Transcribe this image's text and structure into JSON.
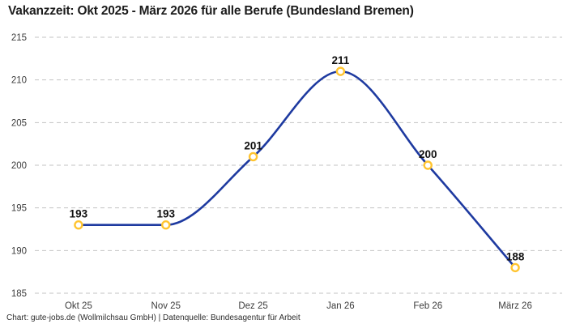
{
  "header": {
    "title": "Vakanzzeit: Okt 2025 - März 2026 für alle Berufe (Bundesland Bremen)"
  },
  "footer": {
    "attribution": "Chart: gute-jobs.de (Wollmilchsau GmbH) | Datenquelle: Bundesagentur für Arbeit"
  },
  "chart_data": {
    "type": "line",
    "title": "Vakanzzeit: Okt 2025 - März 2026 für alle Berufe (Bundesland Bremen)",
    "categories": [
      "Okt 25",
      "Nov 25",
      "Dez 25",
      "Jan 26",
      "Feb 26",
      "März 26"
    ],
    "values": [
      193,
      193,
      201,
      211,
      200,
      188
    ],
    "data_labels": [
      "193",
      "193",
      "201",
      "211",
      "200",
      "188"
    ],
    "yticks": [
      185,
      190,
      195,
      200,
      205,
      210,
      215
    ],
    "ylim": [
      185,
      215
    ],
    "xlabel": "",
    "ylabel": "",
    "grid": "horizontal-dashed",
    "legend_position": "none",
    "interpolation": "monotone",
    "colors": {
      "line": "#1E3AA0",
      "marker_ring": "#FFC42F",
      "marker_fill": "#FFFFFF",
      "grid": "#C3C3C3",
      "tick_text": "#3C3C3C",
      "value_label_text": "#111111"
    }
  }
}
